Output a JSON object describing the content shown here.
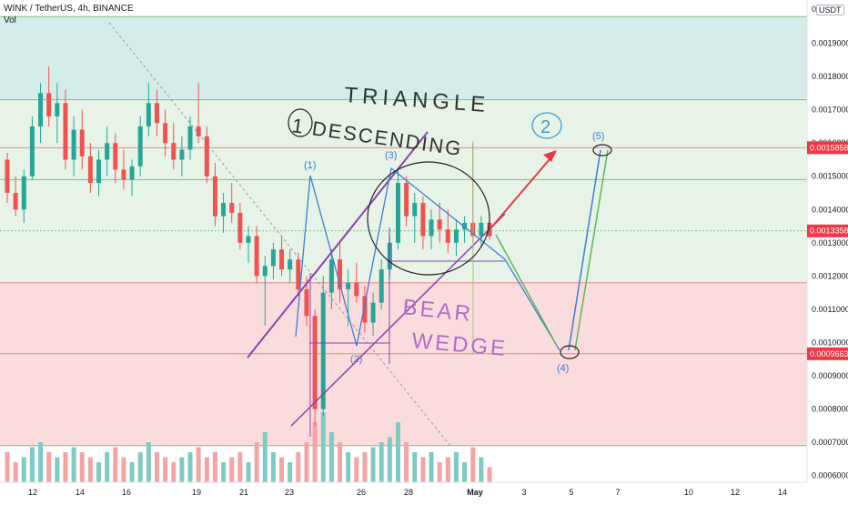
{
  "header": {
    "symbol_line": "WINK / TetherUS, 4h, BINANCE",
    "volume_label": "Vol",
    "currency_button": "USDT"
  },
  "price_axis": {
    "top_partial": "0",
    "ticks": [
      "0.0019000",
      "0.0018000",
      "0.0017000",
      "0.0016000",
      "0.0015000",
      "0.0014000",
      "0.0013000",
      "0.0012000",
      "0.0011000",
      "0.0010000",
      "0.0009000",
      "0.0008000",
      "0.0007000",
      "0.0006000"
    ],
    "range": [
      0.00058,
      0.00203
    ]
  },
  "price_badges": [
    {
      "label": "0.0015858",
      "value": 0.0015858,
      "color": "#f23645"
    },
    {
      "label": "0.0013358",
      "value": 0.0013358,
      "color": "#f23645"
    },
    {
      "label": "0.0009663",
      "value": 0.0009663,
      "color": "#f23645"
    }
  ],
  "time_axis": {
    "labels": [
      "12",
      "14",
      "16",
      "19",
      "21",
      "23",
      "26",
      "28",
      "May",
      "3",
      "5",
      "7",
      "10",
      "12",
      "14"
    ]
  },
  "colors": {
    "bull": "#26a69a",
    "bear": "#ef5350",
    "zone_top": "#d4ecea",
    "zone_mid": "#e6f3e6",
    "zone_low": "#fbdcdc",
    "vol_bull": "#7ecbc3",
    "vol_bear": "#f5a3a3"
  },
  "annotations": {
    "wave_labels": [
      "(1)",
      "(2)",
      "(3)",
      "(4)",
      "(5)"
    ],
    "circled_2": "2",
    "handwriting": [
      "TRIANGLE",
      "1 DESCENDING",
      "BEAR",
      "WEDGE"
    ]
  },
  "chart_data": {
    "type": "candlestick",
    "title": "WINK / TetherUS, 4h, BINANCE",
    "ylim": [
      0.00058,
      0.00203
    ],
    "horizontal_levels": [
      0.00198,
      0.00173,
      0.0015858,
      0.00149,
      0.0013358,
      0.00118,
      0.0009663,
      0.00069
    ],
    "candles_ohlc": [
      [
        0.00155,
        0.00157,
        0.00142,
        0.00145
      ],
      [
        0.00145,
        0.0015,
        0.00138,
        0.0014
      ],
      [
        0.0014,
        0.00152,
        0.00136,
        0.0015
      ],
      [
        0.0015,
        0.00168,
        0.00149,
        0.00165
      ],
      [
        0.00165,
        0.00178,
        0.0016,
        0.00175
      ],
      [
        0.00175,
        0.00183,
        0.00165,
        0.00168
      ],
      [
        0.00168,
        0.00178,
        0.0016,
        0.00172
      ],
      [
        0.00172,
        0.00176,
        0.00152,
        0.00155
      ],
      [
        0.00155,
        0.00168,
        0.0015,
        0.00164
      ],
      [
        0.00164,
        0.0017,
        0.00152,
        0.00156
      ],
      [
        0.00156,
        0.0016,
        0.00145,
        0.00148
      ],
      [
        0.00148,
        0.00158,
        0.00144,
        0.00155
      ],
      [
        0.00155,
        0.00165,
        0.0015,
        0.0016
      ],
      [
        0.0016,
        0.00163,
        0.00148,
        0.00152
      ],
      [
        0.00152,
        0.00158,
        0.00146,
        0.00149
      ],
      [
        0.00149,
        0.00155,
        0.00144,
        0.00153
      ],
      [
        0.00153,
        0.00168,
        0.0015,
        0.00165
      ],
      [
        0.00165,
        0.00178,
        0.00162,
        0.00172
      ],
      [
        0.00172,
        0.00176,
        0.00162,
        0.00166
      ],
      [
        0.00166,
        0.0017,
        0.00156,
        0.0016
      ],
      [
        0.0016,
        0.00166,
        0.00152,
        0.00155
      ],
      [
        0.00155,
        0.00162,
        0.0015,
        0.00158
      ],
      [
        0.00158,
        0.00168,
        0.00155,
        0.00165
      ],
      [
        0.00165,
        0.00178,
        0.0016,
        0.00162
      ],
      [
        0.00162,
        0.00165,
        0.00148,
        0.0015
      ],
      [
        0.0015,
        0.00154,
        0.00135,
        0.00138
      ],
      [
        0.00138,
        0.00145,
        0.00133,
        0.00142
      ],
      [
        0.00142,
        0.00148,
        0.00136,
        0.00139
      ],
      [
        0.00139,
        0.00142,
        0.00128,
        0.0013
      ],
      [
        0.0013,
        0.00135,
        0.00124,
        0.00132
      ],
      [
        0.00132,
        0.00135,
        0.00118,
        0.0012
      ],
      [
        0.0012,
        0.00126,
        0.00105,
        0.00123
      ],
      [
        0.00123,
        0.0013,
        0.00119,
        0.00128
      ],
      [
        0.00128,
        0.00132,
        0.0012,
        0.00122
      ],
      [
        0.00122,
        0.00128,
        0.00118,
        0.00125
      ],
      [
        0.00125,
        0.00127,
        0.00114,
        0.00116
      ],
      [
        0.00116,
        0.0012,
        0.00105,
        0.00108
      ],
      [
        0.00108,
        0.0011,
        0.00075,
        0.0008
      ],
      [
        0.0008,
        0.0012,
        0.00078,
        0.00115
      ],
      [
        0.00115,
        0.00128,
        0.0011,
        0.00125
      ],
      [
        0.00125,
        0.0013,
        0.00112,
        0.00116
      ],
      [
        0.00116,
        0.00122,
        0.00105,
        0.00118
      ],
      [
        0.00118,
        0.00124,
        0.00112,
        0.00114
      ],
      [
        0.00114,
        0.00117,
        0.00103,
        0.00106
      ],
      [
        0.00106,
        0.00115,
        0.00102,
        0.00112
      ],
      [
        0.00112,
        0.00125,
        0.0011,
        0.00122
      ],
      [
        0.00122,
        0.00132,
        0.0012,
        0.0013
      ],
      [
        0.0013,
        0.00152,
        0.00128,
        0.00148
      ],
      [
        0.00148,
        0.0015,
        0.00135,
        0.00138
      ],
      [
        0.00138,
        0.00145,
        0.0013,
        0.00142
      ],
      [
        0.00142,
        0.00144,
        0.00128,
        0.00132
      ],
      [
        0.00132,
        0.0014,
        0.00128,
        0.00137
      ],
      [
        0.00137,
        0.00142,
        0.0013,
        0.00134
      ],
      [
        0.00134,
        0.0014,
        0.00127,
        0.0013
      ],
      [
        0.0013,
        0.00137,
        0.00126,
        0.00134
      ],
      [
        0.00134,
        0.00138,
        0.0013,
        0.00136
      ],
      [
        0.00136,
        0.0016,
        0.0013,
        0.00132
      ],
      [
        0.00132,
        0.00138,
        0.00129,
        0.00136
      ],
      [
        0.00136,
        0.00139,
        0.00131,
        0.00132
      ]
    ],
    "volumes": [
      0.3,
      0.2,
      0.25,
      0.35,
      0.4,
      0.3,
      0.25,
      0.3,
      0.35,
      0.3,
      0.25,
      0.2,
      0.3,
      0.35,
      0.25,
      0.2,
      0.3,
      0.4,
      0.3,
      0.25,
      0.2,
      0.25,
      0.3,
      0.35,
      0.25,
      0.3,
      0.2,
      0.25,
      0.3,
      0.2,
      0.4,
      0.5,
      0.3,
      0.25,
      0.2,
      0.3,
      0.4,
      0.6,
      0.7,
      0.5,
      0.4,
      0.3,
      0.25,
      0.3,
      0.35,
      0.4,
      0.45,
      0.6,
      0.4,
      0.3,
      0.25,
      0.3,
      0.2,
      0.25,
      0.3,
      0.2,
      0.35,
      0.25,
      0.15
    ]
  }
}
